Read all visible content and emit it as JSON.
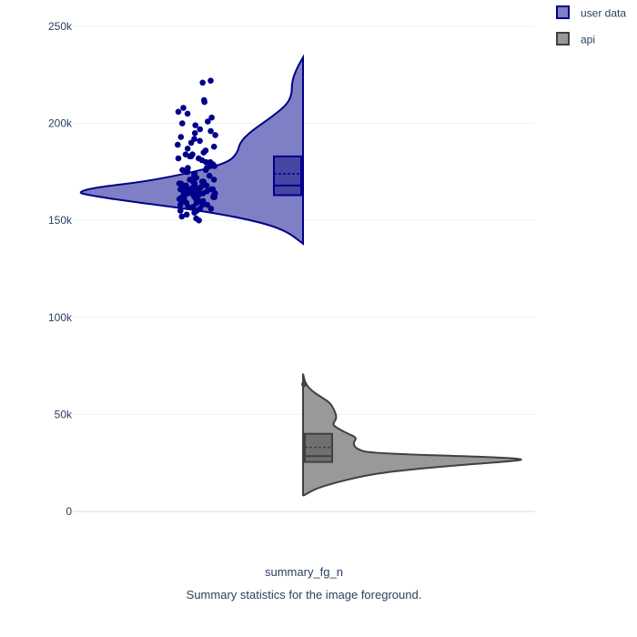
{
  "chart_data": {
    "type": "violin",
    "xlabel": "summary_fg_n",
    "subtitle": "Summary statistics for the image foreground.",
    "ylim": [
      0,
      250000
    ],
    "yticks": [
      {
        "value": 0,
        "label": "0"
      },
      {
        "value": 50000,
        "label": "50k"
      },
      {
        "value": 100000,
        "label": "100k"
      },
      {
        "value": 150000,
        "label": "150k"
      },
      {
        "value": 200000,
        "label": "200k"
      },
      {
        "value": 250000,
        "label": "250k"
      }
    ],
    "grid": true,
    "legend_position": "top-right",
    "series": [
      {
        "name": "user data",
        "side": "negative",
        "color": "#00008b",
        "fill": "#7f7fc5",
        "box": {
          "min": 150000,
          "q1": 163000,
          "median": 168000,
          "mean": 174000,
          "q3": 183000,
          "max": 211000
        },
        "range": [
          138000,
          234000
        ],
        "density": [
          [
            138000,
            0.0
          ],
          [
            145000,
            0.08
          ],
          [
            150000,
            0.22
          ],
          [
            155000,
            0.45
          ],
          [
            160000,
            0.78
          ],
          [
            163000,
            0.95
          ],
          [
            164500,
            1.0
          ],
          [
            167000,
            0.92
          ],
          [
            170000,
            0.7
          ],
          [
            175000,
            0.48
          ],
          [
            180000,
            0.33
          ],
          [
            185000,
            0.29
          ],
          [
            190000,
            0.28
          ],
          [
            195000,
            0.24
          ],
          [
            200000,
            0.18
          ],
          [
            205000,
            0.12
          ],
          [
            210000,
            0.07
          ],
          [
            215000,
            0.05
          ],
          [
            220000,
            0.05
          ],
          [
            225000,
            0.04
          ],
          [
            230000,
            0.02
          ],
          [
            234000,
            0.0
          ]
        ],
        "points": [
          151000,
          150000,
          152000,
          153000,
          154000,
          155000,
          155000,
          156000,
          156000,
          157000,
          157000,
          158000,
          158000,
          158000,
          159000,
          159000,
          160000,
          160000,
          160000,
          161000,
          161000,
          161000,
          162000,
          162000,
          162000,
          162000,
          163000,
          163000,
          163000,
          163000,
          164000,
          164000,
          164000,
          164000,
          164000,
          165000,
          165000,
          165000,
          165000,
          165000,
          165000,
          166000,
          166000,
          166000,
          166000,
          166000,
          167000,
          167000,
          167000,
          167000,
          168000,
          168000,
          168000,
          168000,
          169000,
          169000,
          169000,
          170000,
          170000,
          170000,
          171000,
          171000,
          172000,
          172000,
          173000,
          173000,
          174000,
          174000,
          175000,
          175000,
          176000,
          176000,
          177000,
          177000,
          178000,
          178000,
          179000,
          180000,
          180000,
          181000,
          182000,
          182000,
          183000,
          183000,
          184000,
          184000,
          185000,
          186000,
          187000,
          188000,
          189000,
          190000,
          191000,
          192000,
          193000,
          194000,
          195000,
          196000,
          197000,
          199000,
          200000,
          201000,
          203000,
          205000,
          206000,
          208000,
          211000,
          212000,
          221000,
          222000
        ]
      },
      {
        "name": "api",
        "side": "positive",
        "color": "#404040",
        "fill": "#999999",
        "box": {
          "min": 14000,
          "q1": 25500,
          "median": 28500,
          "mean": 33000,
          "q3": 40000,
          "max": 61000
        },
        "range": [
          8000,
          71000
        ],
        "outliers": [
          65500
        ],
        "density": [
          [
            8000,
            0.0
          ],
          [
            12000,
            0.06
          ],
          [
            16000,
            0.18
          ],
          [
            20000,
            0.34
          ],
          [
            23000,
            0.6
          ],
          [
            25500,
            0.88
          ],
          [
            26800,
            1.0
          ],
          [
            28000,
            0.85
          ],
          [
            30000,
            0.3
          ],
          [
            32000,
            0.24
          ],
          [
            35000,
            0.22
          ],
          [
            38000,
            0.24
          ],
          [
            40000,
            0.2
          ],
          [
            43000,
            0.15
          ],
          [
            45000,
            0.13
          ],
          [
            48000,
            0.15
          ],
          [
            52000,
            0.14
          ],
          [
            56000,
            0.12
          ],
          [
            59000,
            0.08
          ],
          [
            62000,
            0.04
          ],
          [
            66000,
            0.01
          ],
          [
            71000,
            0.0
          ]
        ]
      }
    ]
  }
}
